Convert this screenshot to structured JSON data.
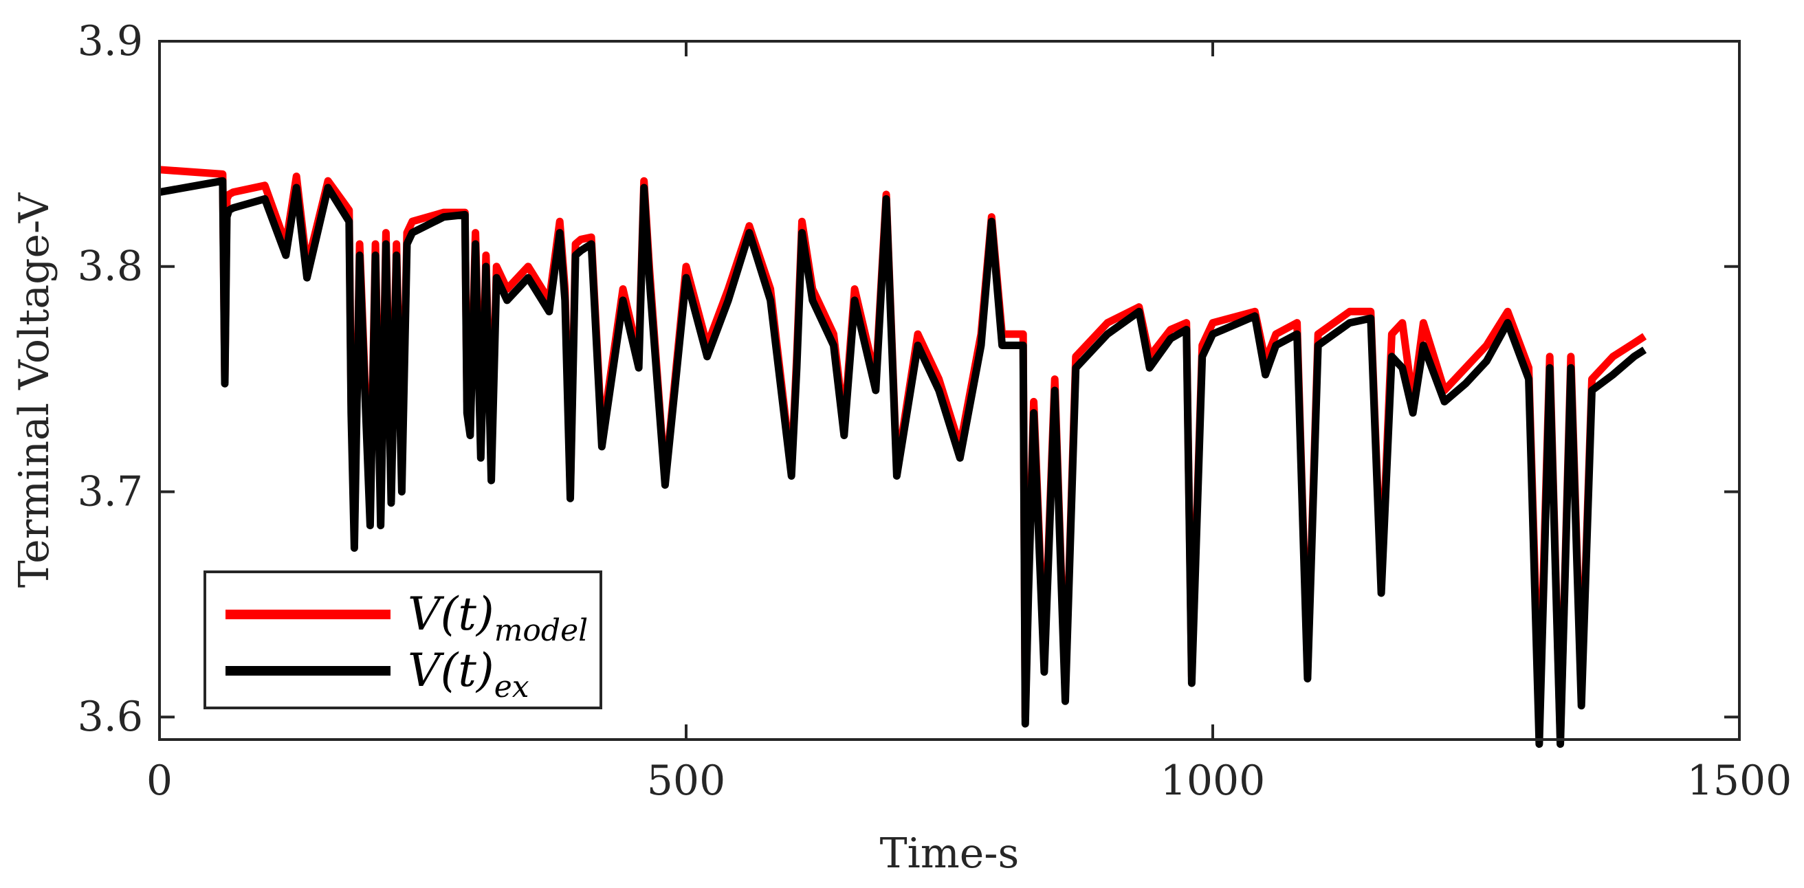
{
  "chart_data": {
    "type": "line",
    "title": "",
    "xlabel": "Time-s",
    "ylabel": "Terminal Voltage-V",
    "xlim": [
      0,
      1500
    ],
    "ylim": [
      3.59,
      3.9
    ],
    "xticks": [
      0,
      500,
      1000,
      1500
    ],
    "yticks": [
      3.6,
      3.7,
      3.8,
      3.9
    ],
    "xtick_labels": [
      "0",
      "500",
      "1000",
      "1500"
    ],
    "ytick_labels": [
      "3.6",
      "3.7",
      "3.8",
      "3.9"
    ],
    "grid": false,
    "legend_position": "bottom-left",
    "series": [
      {
        "name": "V(t)model",
        "legend_main": "V(t)",
        "legend_sub": "model",
        "color": "#ff0000",
        "x": [
          0,
          60,
          62,
          64,
          66,
          70,
          100,
          120,
          130,
          140,
          160,
          180,
          182,
          185,
          190,
          200,
          205,
          210,
          215,
          220,
          225,
          230,
          235,
          240,
          270,
          290,
          292,
          295,
          300,
          305,
          310,
          315,
          320,
          330,
          350,
          370,
          380,
          385,
          390,
          395,
          400,
          410,
          420,
          440,
          455,
          460,
          465,
          480,
          500,
          520,
          540,
          560,
          580,
          600,
          605,
          610,
          620,
          640,
          650,
          660,
          680,
          690,
          700,
          720,
          740,
          760,
          780,
          790,
          800,
          820,
          822,
          825,
          830,
          840,
          850,
          860,
          870,
          900,
          930,
          940,
          960,
          975,
          980,
          990,
          1000,
          1040,
          1050,
          1060,
          1080,
          1090,
          1100,
          1130,
          1150,
          1160,
          1170,
          1180,
          1190,
          1200,
          1220,
          1240,
          1260,
          1280,
          1300,
          1310,
          1320,
          1330,
          1340,
          1350,
          1360,
          1380,
          1400,
          1410
        ],
        "y": [
          3.843,
          3.841,
          3.75,
          3.83,
          3.832,
          3.833,
          3.836,
          3.81,
          3.84,
          3.8,
          3.838,
          3.825,
          3.74,
          3.68,
          3.81,
          3.69,
          3.81,
          3.69,
          3.815,
          3.7,
          3.81,
          3.705,
          3.815,
          3.82,
          3.824,
          3.824,
          3.74,
          3.73,
          3.815,
          3.72,
          3.805,
          3.71,
          3.8,
          3.79,
          3.8,
          3.785,
          3.82,
          3.79,
          3.7,
          3.81,
          3.812,
          3.813,
          3.725,
          3.79,
          3.76,
          3.838,
          3.8,
          3.705,
          3.8,
          3.765,
          3.79,
          3.818,
          3.79,
          3.71,
          3.76,
          3.82,
          3.79,
          3.77,
          3.73,
          3.79,
          3.75,
          3.832,
          3.71,
          3.77,
          3.75,
          3.72,
          3.77,
          3.822,
          3.77,
          3.77,
          3.6,
          3.66,
          3.74,
          3.625,
          3.75,
          3.61,
          3.76,
          3.775,
          3.782,
          3.76,
          3.772,
          3.775,
          3.618,
          3.765,
          3.775,
          3.78,
          3.758,
          3.77,
          3.775,
          3.62,
          3.77,
          3.78,
          3.78,
          3.66,
          3.77,
          3.775,
          3.74,
          3.775,
          3.745,
          3.755,
          3.765,
          3.78,
          3.755,
          3.6,
          3.76,
          3.59,
          3.76,
          3.61,
          3.75,
          3.76,
          3.766,
          3.769
        ]
      },
      {
        "name": "V(t)ex",
        "legend_main": "V(t)",
        "legend_sub": "ex",
        "color": "#000000",
        "x": [
          0,
          60,
          62,
          64,
          66,
          70,
          100,
          120,
          130,
          140,
          160,
          180,
          182,
          185,
          190,
          200,
          205,
          210,
          215,
          220,
          225,
          230,
          235,
          240,
          270,
          290,
          292,
          295,
          300,
          305,
          310,
          315,
          320,
          330,
          350,
          370,
          380,
          385,
          390,
          395,
          400,
          410,
          420,
          440,
          455,
          460,
          465,
          480,
          500,
          520,
          540,
          560,
          580,
          600,
          605,
          610,
          620,
          640,
          650,
          660,
          680,
          690,
          700,
          720,
          740,
          760,
          780,
          790,
          800,
          820,
          822,
          825,
          830,
          840,
          850,
          860,
          870,
          900,
          930,
          940,
          960,
          975,
          980,
          990,
          1000,
          1040,
          1050,
          1060,
          1080,
          1090,
          1100,
          1130,
          1150,
          1160,
          1170,
          1180,
          1190,
          1200,
          1220,
          1240,
          1260,
          1280,
          1300,
          1310,
          1320,
          1330,
          1340,
          1350,
          1360,
          1380,
          1400,
          1410
        ],
        "y": [
          3.833,
          3.838,
          3.748,
          3.822,
          3.825,
          3.826,
          3.83,
          3.805,
          3.835,
          3.795,
          3.835,
          3.82,
          3.735,
          3.675,
          3.805,
          3.685,
          3.805,
          3.685,
          3.81,
          3.695,
          3.805,
          3.7,
          3.81,
          3.815,
          3.822,
          3.823,
          3.735,
          3.725,
          3.81,
          3.715,
          3.8,
          3.705,
          3.795,
          3.785,
          3.795,
          3.78,
          3.815,
          3.785,
          3.697,
          3.805,
          3.807,
          3.81,
          3.72,
          3.785,
          3.755,
          3.835,
          3.795,
          3.703,
          3.795,
          3.76,
          3.785,
          3.815,
          3.785,
          3.707,
          3.755,
          3.815,
          3.785,
          3.765,
          3.725,
          3.785,
          3.745,
          3.83,
          3.707,
          3.765,
          3.745,
          3.715,
          3.765,
          3.82,
          3.765,
          3.765,
          3.597,
          3.655,
          3.735,
          3.62,
          3.745,
          3.607,
          3.755,
          3.77,
          3.78,
          3.755,
          3.768,
          3.772,
          3.615,
          3.76,
          3.77,
          3.778,
          3.752,
          3.765,
          3.77,
          3.617,
          3.765,
          3.775,
          3.777,
          3.655,
          3.76,
          3.755,
          3.735,
          3.765,
          3.74,
          3.748,
          3.758,
          3.775,
          3.75,
          3.588,
          3.755,
          3.588,
          3.755,
          3.605,
          3.745,
          3.752,
          3.76,
          3.763
        ]
      }
    ]
  }
}
